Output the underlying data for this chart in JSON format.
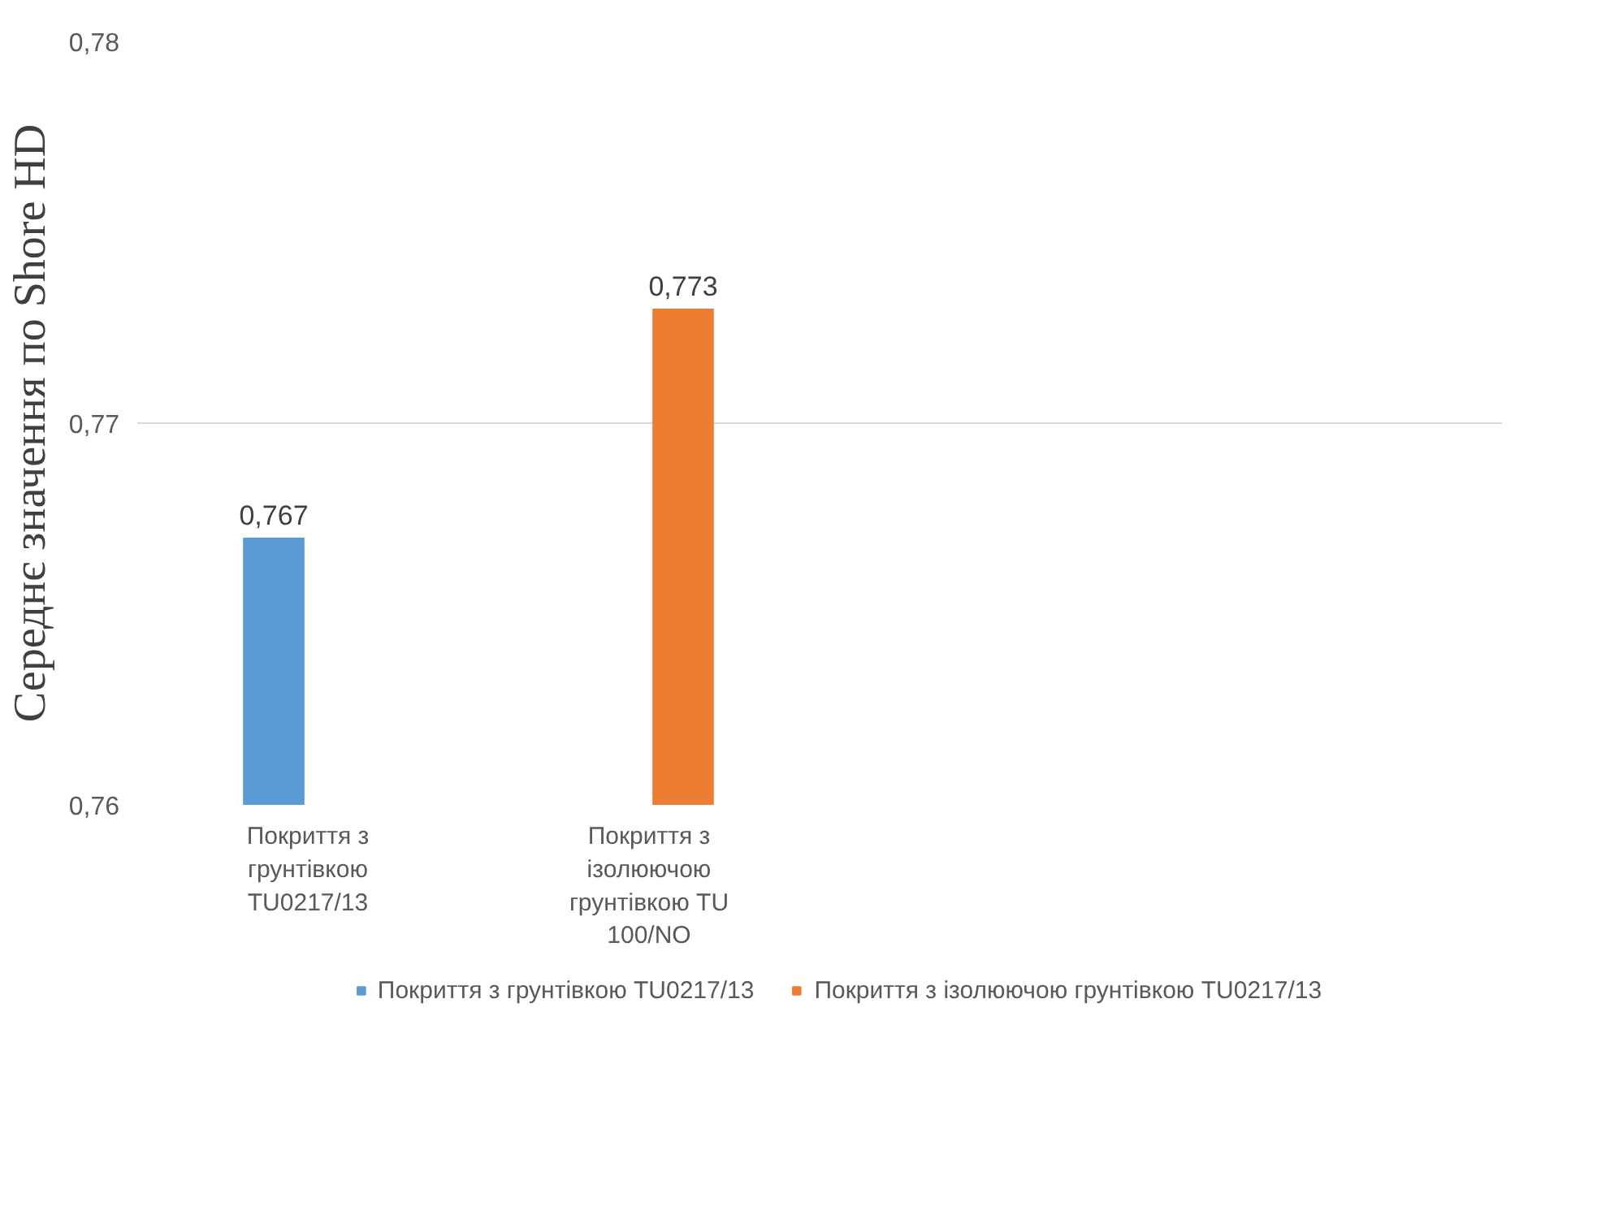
{
  "chart_data": {
    "type": "bar",
    "ylabel": "Середнє значення по Shore HD",
    "categories": [
      "Покриття з грунтівкою TU0217/13",
      "Покриття з ізолюючою грунтівкою TU 100/NO",
      null,
      null
    ],
    "series": [
      {
        "name": "Покриття з грунтівкою TU0217/13",
        "color": "#5b9bd5",
        "values": [
          0.767,
          null,
          null,
          null
        ],
        "value_labels": [
          "0,767",
          null,
          null,
          null
        ]
      },
      {
        "name": "Покриття з ізолюючою грунтівкою TU0217/13",
        "color": "#ed7d31",
        "values": [
          null,
          0.773,
          null,
          null
        ],
        "value_labels": [
          null,
          "0,773",
          null,
          null
        ]
      }
    ],
    "ylim": [
      0.76,
      0.78
    ],
    "yticks": [
      {
        "value": 0.76,
        "label": "0,76"
      },
      {
        "value": 0.77,
        "label": "0,77"
      },
      {
        "value": 0.78,
        "label": "0,78"
      }
    ],
    "grid": "y",
    "legend": "bottom"
  }
}
